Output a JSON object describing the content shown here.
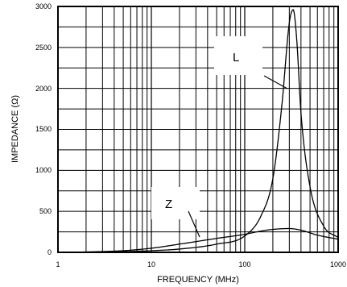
{
  "chart_data": {
    "type": "line",
    "xlabel": "FREQUENCY (MHz)",
    "ylabel": "IMPEDANCE (Ω)",
    "xscale": "log",
    "xlim": [
      1,
      1000
    ],
    "ylim": [
      0,
      3000
    ],
    "grid": true,
    "x_ticks": [
      "1",
      "10",
      "100",
      "1000"
    ],
    "y_ticks": [
      "0",
      "500",
      "1000",
      "1500",
      "2000",
      "2500",
      "3000"
    ],
    "series": [
      {
        "name": "L",
        "x": [
          1,
          2,
          5,
          10,
          20,
          50,
          100,
          150,
          200,
          250,
          300,
          330,
          360,
          400,
          500,
          700,
          1000
        ],
        "y": [
          0,
          2,
          8,
          20,
          40,
          100,
          200,
          450,
          900,
          1800,
          2800,
          2960,
          2600,
          1700,
          800,
          320,
          180
        ]
      },
      {
        "name": "Z",
        "x": [
          1,
          2,
          5,
          10,
          20,
          50,
          100,
          150,
          200,
          300,
          400,
          600,
          1000
        ],
        "y": [
          0,
          5,
          20,
          50,
          100,
          170,
          220,
          260,
          280,
          290,
          270,
          210,
          160
        ]
      }
    ],
    "annotations": [
      {
        "text": "L",
        "series": "L"
      },
      {
        "text": "Z",
        "series": "Z"
      }
    ]
  }
}
